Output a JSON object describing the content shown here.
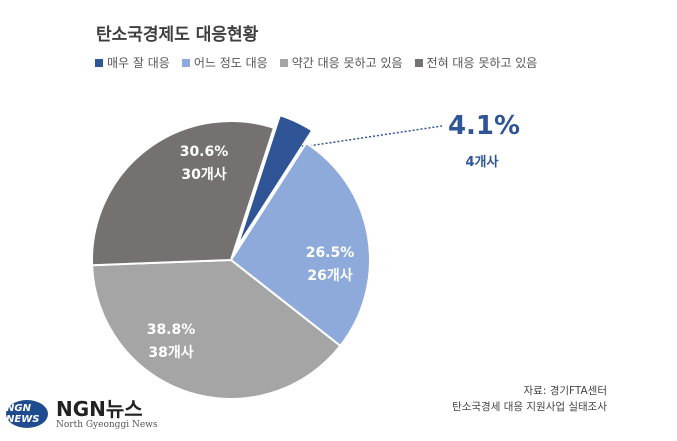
{
  "chart_data": {
    "type": "pie",
    "title": "탄소국경제도 대응현황",
    "start_angle_deg": 18,
    "slices": [
      {
        "name": "매우 잘 대응",
        "percent": 4.1,
        "percent_label": "4.1%",
        "count_label": "4개사",
        "color": "#2f5597",
        "exploded": true
      },
      {
        "name": "어느 정도 대응",
        "percent": 26.5,
        "percent_label": "26.5%",
        "count_label": "26개사",
        "color": "#8eaadb",
        "exploded": false
      },
      {
        "name": "약간 대응 못하고 있음",
        "percent": 38.8,
        "percent_label": "38.8%",
        "count_label": "38개사",
        "color": "#a5a5a5",
        "exploded": false
      },
      {
        "name": "전혀 대응 못하고 있음",
        "percent": 30.6,
        "percent_label": "30.6%",
        "count_label": "30개사",
        "color": "#767171",
        "exploded": false
      }
    ],
    "legend_placement": "top",
    "source_lines": [
      "자료: 경기FTA센터",
      "탄소국경세 대응 지원사업 실태조사"
    ]
  },
  "logo": {
    "mark": "NGN NEWS",
    "name": "NGN뉴스",
    "subtitle": "North Gyeonggi News"
  }
}
